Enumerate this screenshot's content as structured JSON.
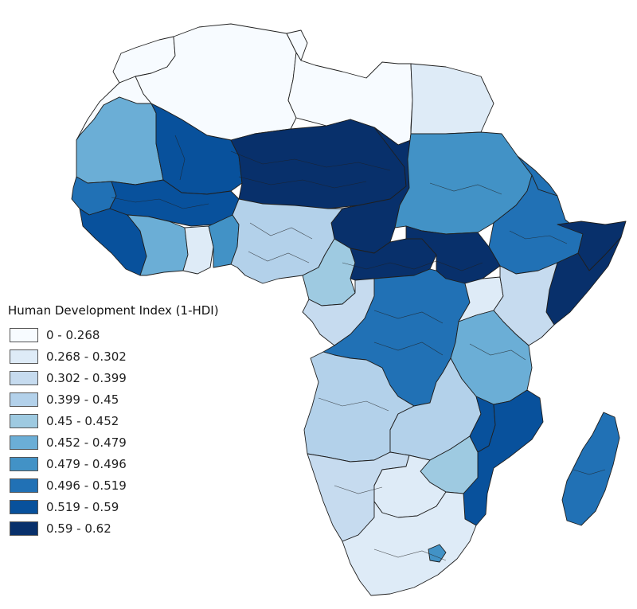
{
  "legend": {
    "title": "Human Development Index (1-HDI)",
    "classes": [
      {
        "label": "0 - 0.268",
        "color": "#f7fbff"
      },
      {
        "label": "0.268 - 0.302",
        "color": "#deebf7"
      },
      {
        "label": "0.302 - 0.399",
        "color": "#c6dbef"
      },
      {
        "label": "0.399 - 0.45",
        "color": "#b3d1ea"
      },
      {
        "label": "0.45 - 0.452",
        "color": "#9ecae1"
      },
      {
        "label": "0.452 - 0.479",
        "color": "#6baed6"
      },
      {
        "label": "0.479 - 0.496",
        "color": "#4292c6"
      },
      {
        "label": "0.496 - 0.519",
        "color": "#2171b5"
      },
      {
        "label": "0.519 - 0.59",
        "color": "#08519c"
      },
      {
        "label": "0.59 - 0.62",
        "color": "#08306b"
      }
    ]
  },
  "map": {
    "region": "Africa",
    "metric": "1-HDI",
    "stroke_color": "#1f1f1f"
  }
}
